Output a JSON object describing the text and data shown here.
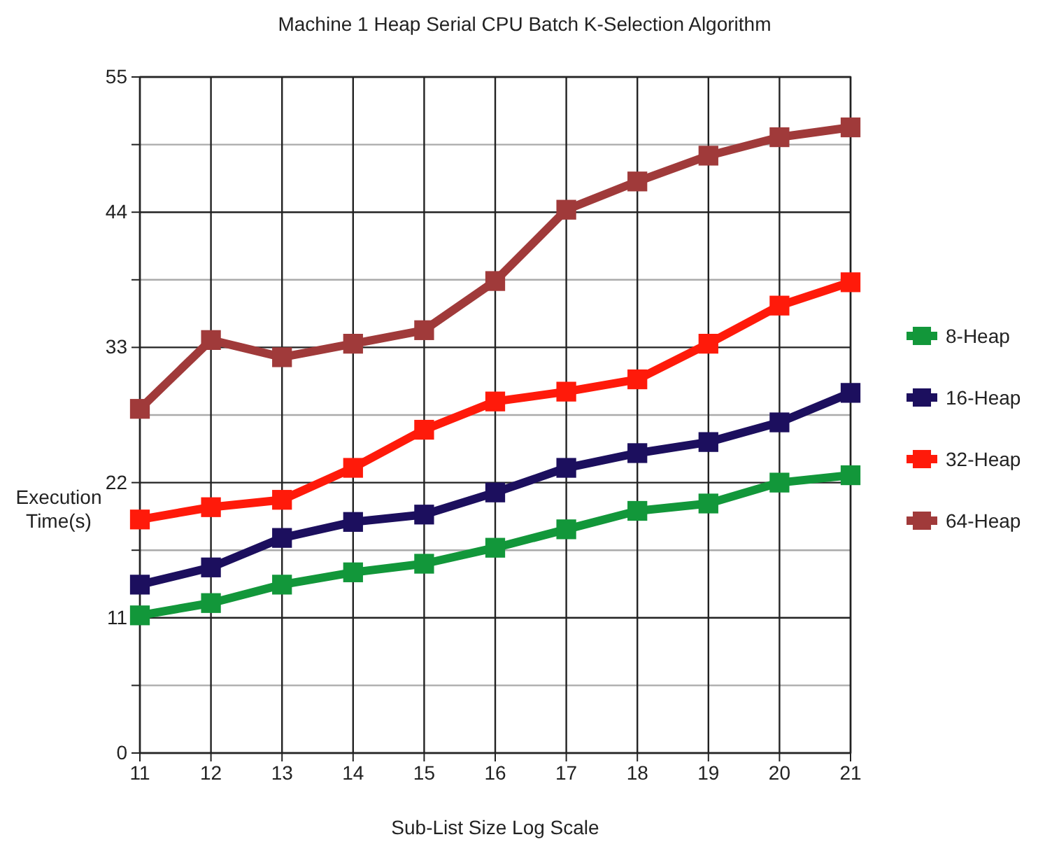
{
  "chart_data": {
    "type": "line",
    "title": "Machine 1 Heap Serial CPU Batch K-Selection Algorithm",
    "xlabel": "Sub-List Size Log Scale",
    "ylabel": "Execution Time(s)",
    "x": [
      11,
      12,
      13,
      14,
      15,
      16,
      17,
      18,
      19,
      20,
      21
    ],
    "xlim": [
      11,
      21
    ],
    "xticks": [
      11,
      12,
      13,
      14,
      15,
      16,
      17,
      18,
      19,
      20,
      21
    ],
    "ylim": [
      0,
      55
    ],
    "yticks": [
      0,
      {
        "value": 5.5,
        "label": null
      },
      11,
      {
        "value": 16.5,
        "label": null
      },
      22,
      {
        "value": 27.5,
        "label": null
      },
      33,
      {
        "value": 38.5,
        "label": null
      },
      44,
      {
        "value": 49.5,
        "label": null
      },
      55
    ],
    "grid": true,
    "legend": "right",
    "marker": "square",
    "line_style": "solid",
    "series": [
      {
        "name": "8-Heap",
        "color": "#12973a",
        "values": [
          11.2,
          12.2,
          13.7,
          14.7,
          15.4,
          16.7,
          18.2,
          19.7,
          20.3,
          22.0,
          22.6
        ]
      },
      {
        "name": "16-Heap",
        "color": "#1c0f5e",
        "values": [
          13.7,
          15.1,
          17.5,
          18.8,
          19.4,
          21.2,
          23.2,
          24.4,
          25.3,
          26.9,
          29.3
        ]
      },
      {
        "name": "32-Heap",
        "color": "#ff1a0a",
        "values": [
          19.0,
          20.0,
          20.6,
          23.2,
          26.3,
          28.6,
          29.4,
          30.4,
          33.3,
          36.4,
          38.3
        ]
      },
      {
        "name": "64-Heap",
        "color": "#a03a3a",
        "values": [
          28.0,
          33.6,
          32.2,
          33.3,
          34.4,
          38.4,
          44.2,
          46.5,
          48.6,
          50.1,
          50.9
        ]
      }
    ]
  }
}
